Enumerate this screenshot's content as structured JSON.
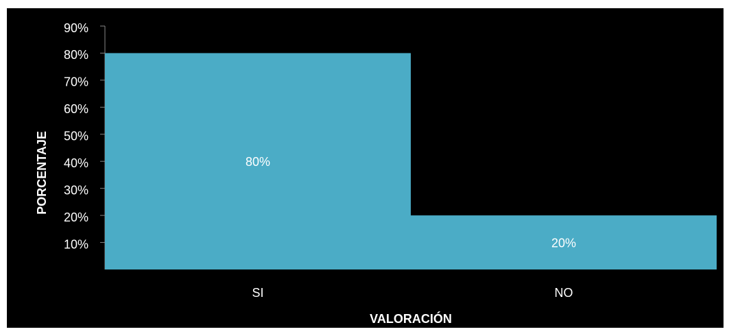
{
  "chart_data": {
    "type": "bar",
    "x_label": "VALORACIÓN",
    "y_label": "PORCENTAJE",
    "categories": [
      "SI",
      "NO"
    ],
    "values": [
      80,
      20
    ],
    "value_labels": [
      "80%",
      "20%"
    ],
    "color": "#4bacc6",
    "ylim": [
      0,
      90
    ],
    "yticks": [
      {
        "value": 10,
        "label": "10%"
      },
      {
        "value": 20,
        "label": "20%"
      },
      {
        "value": 30,
        "label": "30%"
      },
      {
        "value": 40,
        "label": "40%"
      },
      {
        "value": 50,
        "label": "50%"
      },
      {
        "value": 60,
        "label": "60%"
      },
      {
        "value": 70,
        "label": "70%"
      },
      {
        "value": 80,
        "label": "80%"
      },
      {
        "value": 90,
        "label": "90%"
      }
    ],
    "grid": false
  }
}
